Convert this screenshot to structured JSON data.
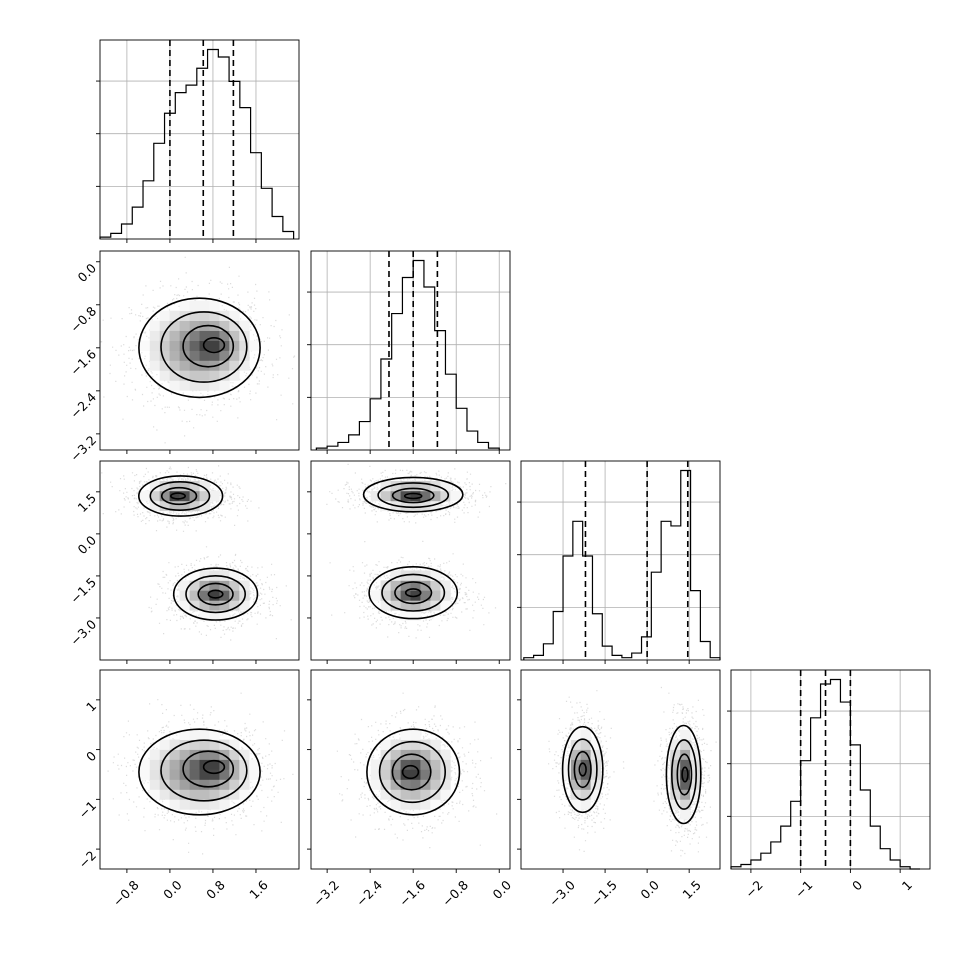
{
  "colors": {
    "foreground": "#000000",
    "grid": "#b0b0b0",
    "scatter": "#9a9a9a",
    "background": "#ffffff"
  },
  "chart_data": {
    "type": "corner",
    "parameters": 4,
    "grid": true,
    "quantile_lines": "dashed",
    "hist_y_ticks": "unlabeled",
    "parameter_specs": [
      {
        "index": 0,
        "range": [
          -1.3,
          2.4
        ],
        "ticks": [
          -0.8,
          0.0,
          0.8,
          1.6
        ],
        "tick_labels": [
          "−0.8",
          "0.0",
          "0.8",
          "1.6"
        ],
        "quantiles": [
          0.0,
          0.62,
          1.18
        ]
      },
      {
        "index": 1,
        "range": [
          -3.5,
          0.2
        ],
        "ticks": [
          -3.2,
          -2.4,
          -1.6,
          -0.8,
          0.0
        ],
        "tick_labels": [
          "−3.2",
          "−2.4",
          "−1.6",
          "−0.8",
          "0.0"
        ],
        "quantiles": [
          -2.05,
          -1.6,
          -1.15
        ]
      },
      {
        "index": 2,
        "range": [
          -4.5,
          2.6
        ],
        "ticks": [
          -3.0,
          -1.5,
          0.0,
          1.5
        ],
        "tick_labels": [
          "−3.0",
          "−1.5",
          "0.0",
          "1.5"
        ],
        "quantiles": [
          -2.2,
          0.0,
          1.45
        ]
      },
      {
        "index": 3,
        "range": [
          -2.4,
          1.6
        ],
        "ticks": [
          -2,
          -1,
          0,
          1
        ],
        "tick_labels": [
          "−2",
          "−1",
          "0",
          "1"
        ],
        "quantiles": [
          -1.0,
          -0.5,
          0.0
        ]
      }
    ],
    "histograms": [
      {
        "param": 0,
        "bin_edges": [
          -1.3,
          -1.1,
          -0.9,
          -0.7,
          -0.5,
          -0.3,
          -0.1,
          0.1,
          0.3,
          0.5,
          0.7,
          0.9,
          1.1,
          1.3,
          1.5,
          1.7,
          1.9,
          2.1,
          2.3
        ],
        "counts": [
          1,
          3,
          8,
          17,
          31,
          51,
          67,
          78,
          82,
          91,
          101,
          97,
          84,
          70,
          46,
          27,
          12,
          4
        ]
      },
      {
        "param": 1,
        "bin_edges": [
          -3.4,
          -3.2,
          -3.0,
          -2.8,
          -2.6,
          -2.4,
          -2.2,
          -2.0,
          -1.8,
          -1.6,
          -1.4,
          -1.2,
          -1.0,
          -0.8,
          -0.6,
          -0.4,
          -0.2,
          0.0
        ],
        "counts": [
          1,
          2,
          4,
          8,
          15,
          27,
          48,
          72,
          91,
          100,
          86,
          63,
          40,
          22,
          10,
          4,
          1
        ]
      },
      {
        "param": 2,
        "bin_edges": [
          -4.4,
          -4.05,
          -3.7,
          -3.35,
          -3.0,
          -2.65,
          -2.3,
          -1.95,
          -1.6,
          -1.25,
          -0.9,
          -0.55,
          -0.2,
          0.15,
          0.5,
          0.85,
          1.2,
          1.55,
          1.9,
          2.25,
          2.6
        ],
        "counts": [
          1,
          2,
          7,
          21,
          45,
          60,
          45,
          20,
          6,
          2,
          1,
          3,
          10,
          38,
          60,
          58,
          82,
          30,
          8,
          1
        ]
      },
      {
        "param": 3,
        "bin_edges": [
          -2.4,
          -2.2,
          -2.0,
          -1.8,
          -1.6,
          -1.4,
          -1.2,
          -1.0,
          -0.8,
          -0.6,
          -0.4,
          -0.2,
          0.0,
          0.2,
          0.4,
          0.6,
          0.8,
          1.0,
          1.2,
          1.4
        ],
        "counts": [
          1,
          2,
          4,
          7,
          12,
          19,
          30,
          48,
          67,
          82,
          84,
          74,
          55,
          35,
          19,
          9,
          4,
          1,
          0
        ]
      }
    ],
    "joint_blobs": [
      {
        "panel": [
          1,
          0
        ],
        "blobs": [
          {
            "cx": 0.55,
            "cy": -1.6,
            "sx": 0.55,
            "sy": 0.45,
            "peak": [
              0.82,
              -1.55
            ]
          }
        ]
      },
      {
        "panel": [
          2,
          0
        ],
        "blobs": [
          {
            "cx": 0.2,
            "cy": 1.35,
            "sx": 0.38,
            "sy": 0.35,
            "peak": [
              0.15,
              1.35
            ]
          },
          {
            "cx": 0.85,
            "cy": -2.15,
            "sx": 0.38,
            "sy": 0.45,
            "peak": [
              0.85,
              -2.15
            ]
          }
        ]
      },
      {
        "panel": [
          3,
          0
        ],
        "blobs": [
          {
            "cx": 0.55,
            "cy": -0.45,
            "sx": 0.55,
            "sy": 0.42,
            "peak": [
              0.82,
              -0.35
            ]
          }
        ]
      },
      {
        "panel": [
          2,
          1
        ],
        "blobs": [
          {
            "cx": -1.6,
            "cy": 1.4,
            "sx": 0.45,
            "sy": 0.3,
            "peak": [
              -1.6,
              1.35
            ]
          },
          {
            "cx": -1.6,
            "cy": -2.1,
            "sx": 0.4,
            "sy": 0.45,
            "peak": [
              -1.6,
              -2.1
            ]
          }
        ]
      },
      {
        "panel": [
          3,
          1
        ],
        "blobs": [
          {
            "cx": -1.6,
            "cy": -0.45,
            "sx": 0.42,
            "sy": 0.42,
            "peak": [
              -1.65,
              -0.45
            ]
          }
        ]
      },
      {
        "panel": [
          3,
          2
        ],
        "blobs": [
          {
            "cx": -2.3,
            "cy": -0.4,
            "sx": 0.35,
            "sy": 0.42,
            "peak": [
              -2.3,
              -0.4
            ]
          },
          {
            "cx": 1.3,
            "cy": -0.5,
            "sx": 0.3,
            "sy": 0.48,
            "peak": [
              1.35,
              -0.5
            ]
          }
        ]
      }
    ]
  }
}
